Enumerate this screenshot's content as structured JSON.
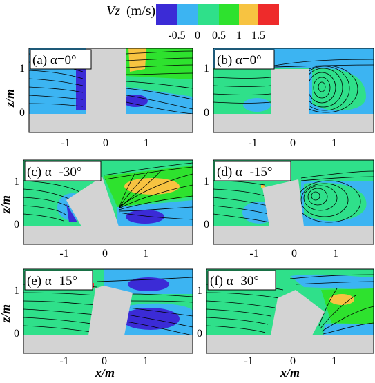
{
  "colorbar": {
    "variable": "Vz",
    "unit": "(m/s)",
    "tick_labels": [
      "-0.5",
      "0",
      "0.5",
      "1",
      "1.5"
    ],
    "colors": [
      "#3b2bd6",
      "#3cb4f2",
      "#2fe08a",
      "#2ee22e",
      "#f7c341",
      "#ee2b2b"
    ]
  },
  "axis": {
    "xlabel": "x/m",
    "ylabel": "z/m",
    "x_ticks": [
      "-1",
      "0",
      "1"
    ],
    "z_ticks": [
      "1",
      "0"
    ]
  },
  "panels": [
    {
      "label": "(a) α=0°"
    },
    {
      "label": "(b) α=0°"
    },
    {
      "label": "(c) α=-30°"
    },
    {
      "label": "(d) α=-15°"
    },
    {
      "label": "(e) α=15°"
    },
    {
      "label": "(f) α=30°"
    }
  ]
}
